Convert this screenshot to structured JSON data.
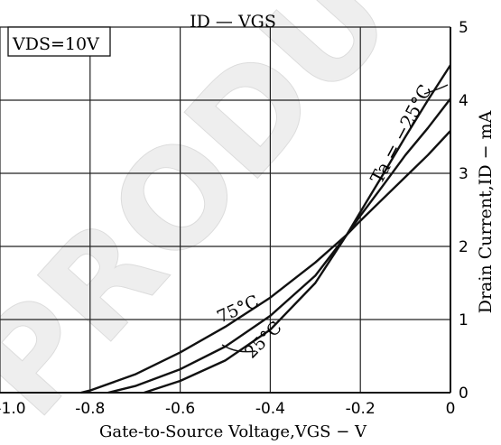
{
  "chart_data": {
    "type": "line",
    "title": "ID — VGS",
    "condition": "VDS=10V",
    "xlabel": "Gate-to-Source Voltage,VGS − V",
    "ylabel": "Drain Current,ID − mA",
    "xlim": [
      -1.0,
      0
    ],
    "ylim": [
      0,
      5
    ],
    "x_ticks": [
      "-1.0",
      "-0.8",
      "-0.6",
      "-0.4",
      "-0.2",
      "0"
    ],
    "y_ticks": [
      "0",
      "1",
      "2",
      "3",
      "4",
      "5"
    ],
    "grid": true,
    "watermark": "PRODUCT",
    "series": [
      {
        "name": "Ta = −25°C",
        "x": [
          -0.68,
          -0.6,
          -0.5,
          -0.4,
          -0.3,
          -0.23,
          -0.2,
          -0.15,
          -0.1,
          -0.05,
          0
        ],
        "y": [
          0.0,
          0.16,
          0.44,
          0.86,
          1.5,
          2.16,
          2.47,
          2.98,
          3.5,
          4.0,
          4.48
        ]
      },
      {
        "name": "25°C",
        "x": [
          -0.76,
          -0.7,
          -0.6,
          -0.5,
          -0.4,
          -0.3,
          -0.23,
          -0.2,
          -0.15,
          -0.1,
          -0.05,
          0
        ],
        "y": [
          0.0,
          0.09,
          0.32,
          0.63,
          1.05,
          1.6,
          2.16,
          2.42,
          2.83,
          3.25,
          3.62,
          4.02
        ]
      },
      {
        "name": "75°C",
        "x": [
          -0.82,
          -0.8,
          -0.7,
          -0.6,
          -0.5,
          -0.4,
          -0.3,
          -0.23,
          -0.2,
          -0.15,
          -0.1,
          -0.05,
          0
        ],
        "y": [
          0.0,
          0.03,
          0.25,
          0.55,
          0.9,
          1.3,
          1.78,
          2.16,
          2.35,
          2.65,
          2.95,
          3.25,
          3.58
        ]
      }
    ]
  },
  "labels": {
    "ta_label": "Ta = −25°C",
    "label_25": "25°C",
    "label_75": "75°C"
  },
  "colors": {
    "ink": "#111111",
    "grid": "#222222",
    "watermark_fill": "#eeeeee"
  }
}
